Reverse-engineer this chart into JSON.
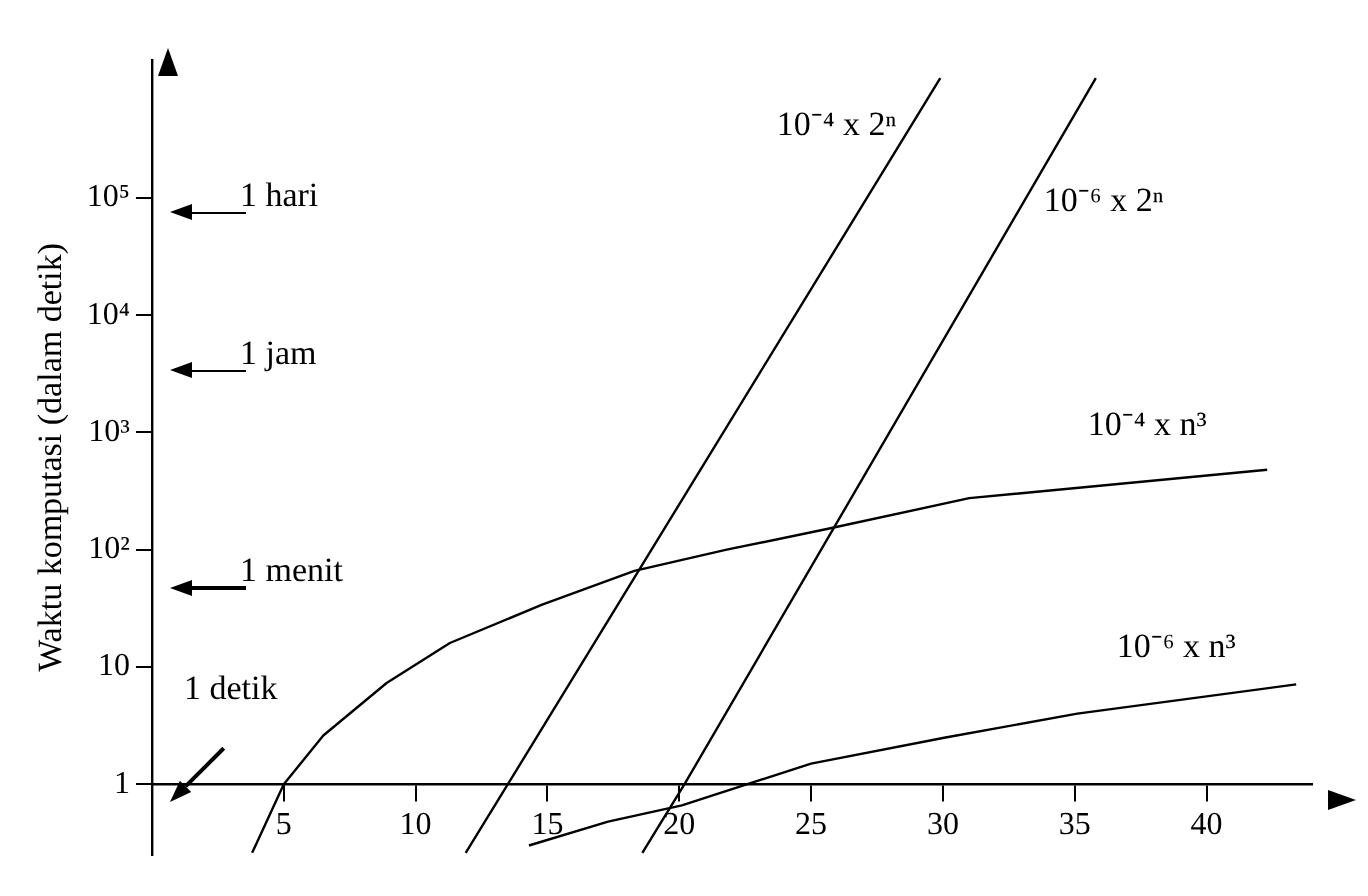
{
  "chart_data": {
    "type": "line",
    "ylabel": "Waktu komputasi (dalam detik)",
    "log": "y",
    "xlim": [
      0,
      44
    ],
    "ylim": [
      0.25,
      1500000
    ],
    "xticks": [
      5,
      10,
      15,
      20,
      25,
      30,
      35,
      40
    ],
    "yticks": [
      1,
      10,
      {
        "value": 100,
        "label": "10²"
      },
      {
        "value": 1000,
        "label": "10³"
      },
      {
        "value": 10000,
        "label": "10⁴"
      },
      {
        "value": 100000,
        "label": "10⁵"
      }
    ],
    "grid": false,
    "legend": false,
    "marker": "none",
    "line_style": "solid",
    "series": [
      {
        "name": "10⁻⁴ x 2ⁿ",
        "color": "#000000",
        "x": [
          11.9,
          13.5,
          29.9
        ],
        "values": [
          0.26,
          1,
          1050000
        ]
      },
      {
        "name": "10⁻⁶ x 2ⁿ",
        "color": "#000000",
        "x": [
          18.6,
          20.2,
          35.8
        ],
        "values": [
          0.26,
          1,
          1050000
        ]
      },
      {
        "name": "10⁻⁴ x n³",
        "color": "#000000",
        "x": [
          3.8,
          5,
          6.5,
          8.9,
          11.3,
          14.8,
          18.3,
          21.8,
          25.6,
          31,
          42.3
        ],
        "values": [
          0.26,
          1,
          2.6,
          7.3,
          16,
          34,
          66,
          100,
          150,
          275,
          480
        ]
      },
      {
        "name": "10⁻⁶ x n³",
        "color": "#000000",
        "x": [
          14.3,
          17.3,
          20.1,
          25,
          30.1,
          35.1,
          43.4
        ],
        "values": [
          0.3,
          0.48,
          0.66,
          1.5,
          2.5,
          4,
          7.1
        ]
      }
    ],
    "annotations": [
      "1 hari",
      "1 jam",
      "1 menit",
      "1 detik"
    ]
  }
}
